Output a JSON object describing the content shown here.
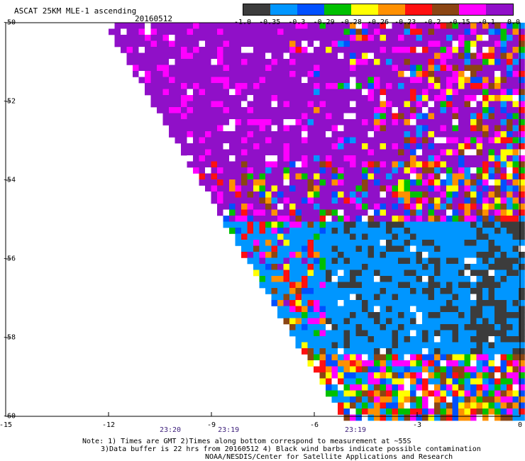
{
  "header": {
    "title": "ASCAT 25KM MLE-1 ascending",
    "date": "20160512"
  },
  "legend": {
    "colors": [
      "#3c3c3c",
      "#0096ff",
      "#0050ff",
      "#00c000",
      "#ffff00",
      "#ff9000",
      "#ff1010",
      "#8b4513",
      "#ff00ff",
      "#9010c8"
    ],
    "labels": [
      "-1.0",
      "-0.35",
      "-0.3",
      "-0.29",
      "-0.28",
      "-0.26",
      "-0.23",
      "-0.2",
      "-0.15",
      "-0.1",
      "0.0"
    ]
  },
  "axes": {
    "x_ticks": [
      "-15",
      "-12",
      "-9",
      "-6",
      "-3",
      "0"
    ],
    "y_ticks": [
      "-50",
      "-52",
      "-54",
      "-56",
      "-58",
      "-60"
    ],
    "x_range": [
      -15,
      0
    ],
    "y_range": [
      -60,
      -50
    ]
  },
  "times": [
    {
      "label": "23:20",
      "lon": -10.2
    },
    {
      "label": "23:19",
      "lon": -8.5
    },
    {
      "label": "23:19",
      "lon": -4.8
    }
  ],
  "notes": {
    "line1": "Note: 1) Times are GMT 2)Times along bottom correspond to measurement at ~55S",
    "line2": "3)Data buffer is 22 hrs from 20160512 4) Black wind barbs indicate possible contamination",
    "line3": "NOAA/NESDIS/Center for Satellite Applications and Research"
  }
}
